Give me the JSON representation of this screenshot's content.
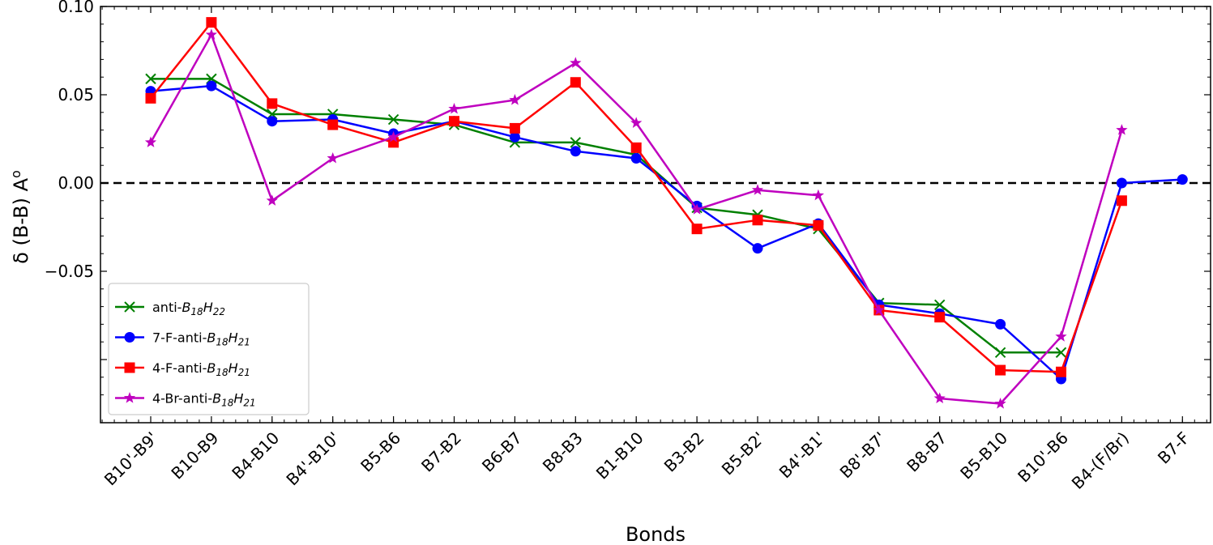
{
  "chart_data": {
    "type": "line",
    "xlabel": "Bonds",
    "ylabel": "δ (B-B) A",
    "ylabel_superscript": "o",
    "ylim": [
      -0.13,
      0.1
    ],
    "yticks": [
      {
        "value": 0.1,
        "label": "0.10"
      },
      {
        "value": 0.05,
        "label": "0.05"
      },
      {
        "value": 0.0,
        "label": "0.00"
      },
      {
        "value": -0.05,
        "label": "−0.05"
      },
      {
        "value": -0.1,
        "label": ""
      }
    ],
    "grid": false,
    "reference_line": {
      "y": 0,
      "style": "dashed",
      "color": "#000000"
    },
    "legend_position": "lower-left",
    "categories": [
      "B10'-B9'",
      "B10-B9",
      "B4-B10",
      "B4'-B10'",
      "B5-B6",
      "B7-B2",
      "B6-B7",
      "B8-B3",
      "B1-B10",
      "B3-B2",
      "B5-B2'",
      "B4'-B1'",
      "B8'-B7'",
      "B8-B7",
      "B5-B10",
      "B10'-B6",
      "B4-(F/Br)",
      "B7-F"
    ],
    "series": [
      {
        "name": "anti-B18H22",
        "name_parts": {
          "prefix": "anti-",
          "b_sub": "18",
          "h_sub": "22"
        },
        "color": "#008000",
        "marker": "x",
        "values": [
          0.059,
          0.059,
          0.039,
          0.039,
          0.036,
          0.033,
          0.023,
          0.023,
          0.016,
          -0.014,
          -0.018,
          -0.026,
          -0.068,
          -0.069,
          -0.096,
          -0.096,
          null,
          null
        ]
      },
      {
        "name": "7-F-anti-B18H21",
        "name_parts": {
          "prefix": "7-F-anti-",
          "b_sub": "18",
          "h_sub": "21"
        },
        "color": "#0000ff",
        "marker": "circle",
        "values": [
          0.052,
          0.055,
          0.035,
          0.036,
          0.028,
          0.035,
          0.026,
          0.018,
          0.014,
          -0.013,
          -0.037,
          -0.023,
          -0.069,
          -0.074,
          -0.08,
          -0.111,
          0.0,
          0.002
        ]
      },
      {
        "name": "4-F-anti-B18H21",
        "name_parts": {
          "prefix": "4-F-anti-",
          "b_sub": "18",
          "h_sub": "21"
        },
        "color": "#ff0000",
        "marker": "square",
        "values": [
          0.048,
          0.091,
          0.045,
          0.033,
          0.023,
          0.035,
          0.031,
          0.057,
          0.02,
          -0.026,
          -0.021,
          -0.024,
          -0.072,
          -0.076,
          -0.106,
          -0.107,
          -0.01,
          null
        ]
      },
      {
        "name": "4-Br-anti-B18H21",
        "name_parts": {
          "prefix": "4-Br-anti-",
          "b_sub": "18",
          "h_sub": "21"
        },
        "color": "#bf00bf",
        "marker": "star",
        "values": [
          0.023,
          0.084,
          -0.01,
          0.014,
          0.026,
          0.042,
          0.047,
          0.068,
          0.034,
          -0.015,
          -0.004,
          -0.007,
          -0.072,
          -0.122,
          -0.125,
          -0.087,
          0.03,
          null
        ]
      }
    ]
  }
}
